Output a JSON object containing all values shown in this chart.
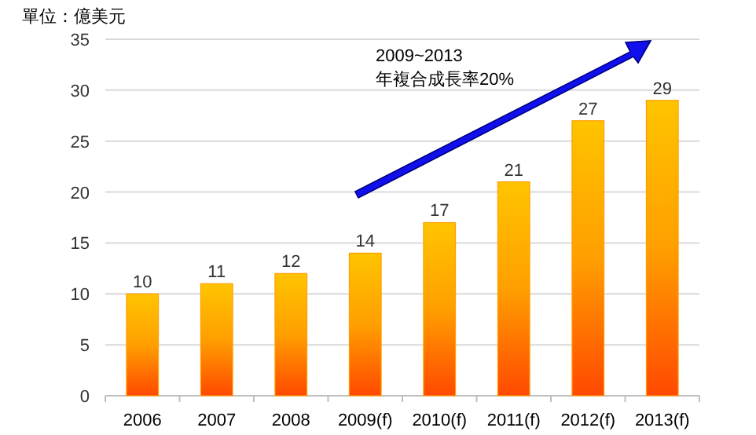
{
  "chart_data": {
    "type": "bar",
    "ylabel": "單位：億美元",
    "categories": [
      "2006",
      "2007",
      "2008",
      "2009(f)",
      "2010(f)",
      "2011(f)",
      "2012(f)",
      "2013(f)"
    ],
    "values": [
      10,
      11,
      12,
      14,
      17,
      21,
      27,
      29
    ],
    "color": "#ff9f00",
    "ylim": [
      0,
      35
    ],
    "yticks": [
      0,
      5,
      10,
      15,
      20,
      25,
      30,
      35
    ],
    "grid": "y",
    "data_labels": true,
    "annotations": [
      "2009~2013",
      "年複合成長率20%"
    ]
  }
}
